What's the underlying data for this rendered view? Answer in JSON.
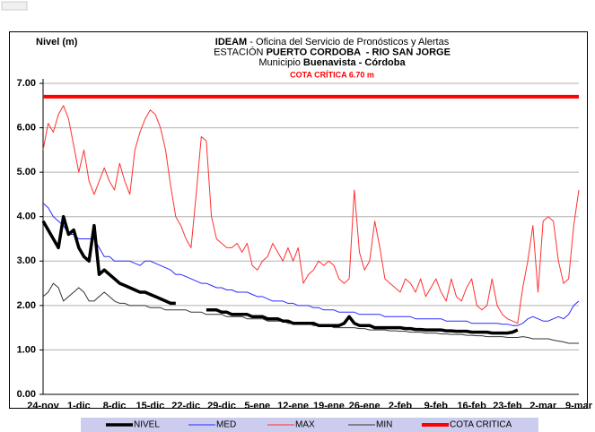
{
  "chart_data": {
    "type": "line",
    "title_lines": [
      [
        {
          "text": "IDEAM",
          "bold": true
        },
        {
          "text": " - Oficina del Servicio de Pronósticos y Alertas",
          "bold": false
        }
      ],
      [
        {
          "text": "ESTACIÓN ",
          "bold": false
        },
        {
          "text": "PUERTO CORDOBA  - RIO SAN JORGE",
          "bold": true
        }
      ],
      [
        {
          "text": "Municipio ",
          "bold": false
        },
        {
          "text": "Buenavista - Córdoba",
          "bold": true
        }
      ]
    ],
    "annotation": "COTA CRÍTICA 6.70 m",
    "ylabel": "Nivel (m)",
    "ylim": [
      0,
      7
    ],
    "yticks": [
      {
        "value": 0,
        "label": "0.00"
      },
      {
        "value": 1,
        "label": "1.00"
      },
      {
        "value": 2,
        "label": "2.00"
      },
      {
        "value": 3,
        "label": "3.00"
      },
      {
        "value": 4,
        "label": "4.00"
      },
      {
        "value": 5,
        "label": "5.00"
      },
      {
        "value": 6,
        "label": "6.00"
      },
      {
        "value": 7,
        "label": "7.00"
      }
    ],
    "grid": true,
    "legend": "bottom",
    "categories": [
      "24-nov",
      null,
      null,
      null,
      null,
      null,
      null,
      "1-dic",
      null,
      null,
      null,
      null,
      null,
      null,
      "8-dic",
      null,
      null,
      null,
      null,
      null,
      null,
      "15-dic",
      null,
      null,
      null,
      null,
      null,
      null,
      "22-dic",
      null,
      null,
      null,
      null,
      null,
      null,
      "29-dic",
      null,
      null,
      null,
      null,
      null,
      null,
      "5-ene",
      null,
      null,
      null,
      null,
      null,
      null,
      "12-ene",
      null,
      null,
      null,
      null,
      null,
      null,
      "19-ene",
      null,
      null,
      null,
      null,
      null,
      null,
      "26-ene",
      null,
      null,
      null,
      null,
      null,
      null,
      "2-feb",
      null,
      null,
      null,
      null,
      null,
      null,
      "9-feb",
      null,
      null,
      null,
      null,
      null,
      null,
      "16-feb",
      null,
      null,
      null,
      null,
      null,
      null,
      "23-feb",
      null,
      null,
      null,
      null,
      null,
      null,
      "2-mar",
      null,
      null,
      null,
      null,
      null,
      null,
      "9-mar"
    ],
    "series": [
      {
        "name": "NIVEL",
        "color": "#000000",
        "width": 3.5,
        "values": [
          3.9,
          3.7,
          3.5,
          3.3,
          4.0,
          3.6,
          3.7,
          3.3,
          3.1,
          3.0,
          3.8,
          2.7,
          2.8,
          2.7,
          2.6,
          2.5,
          2.45,
          2.4,
          2.35,
          2.3,
          2.3,
          2.25,
          2.2,
          2.15,
          2.1,
          2.05,
          2.05,
          null,
          2.0,
          null,
          1.95,
          null,
          1.9,
          1.9,
          1.9,
          1.85,
          1.85,
          1.8,
          1.8,
          1.8,
          1.8,
          1.75,
          1.75,
          1.75,
          1.7,
          1.7,
          1.7,
          1.65,
          1.65,
          1.6,
          1.6,
          1.6,
          1.6,
          1.6,
          1.55,
          1.55,
          1.55,
          1.55,
          1.55,
          1.6,
          1.75,
          1.6,
          1.55,
          1.55,
          1.55,
          1.5,
          1.5,
          1.5,
          1.5,
          1.5,
          1.5,
          1.48,
          1.48,
          1.46,
          1.46,
          1.45,
          1.45,
          1.45,
          1.45,
          1.43,
          1.43,
          1.42,
          1.42,
          1.42,
          1.4,
          1.4,
          1.4,
          1.4,
          1.38,
          1.38,
          1.38,
          1.38,
          1.4,
          1.45,
          null,
          null,
          null,
          null,
          null,
          null,
          null,
          null,
          null,
          null,
          null,
          null
        ]
      },
      {
        "name": "MED",
        "color": "#2a2aff",
        "width": 1,
        "values": [
          4.3,
          4.2,
          4.0,
          3.9,
          3.8,
          3.6,
          3.6,
          3.5,
          3.5,
          3.5,
          3.5,
          3.3,
          3.1,
          3.1,
          3.0,
          3.0,
          3.0,
          3.0,
          2.95,
          2.9,
          3.0,
          3.0,
          2.95,
          2.9,
          2.85,
          2.8,
          2.7,
          2.7,
          2.65,
          2.6,
          2.55,
          2.5,
          2.5,
          2.45,
          2.4,
          2.4,
          2.35,
          2.35,
          2.3,
          2.3,
          2.3,
          2.25,
          2.2,
          2.2,
          2.15,
          2.1,
          2.1,
          2.1,
          2.05,
          2.05,
          2.0,
          2.0,
          2.0,
          1.95,
          1.95,
          1.9,
          1.9,
          1.9,
          1.85,
          1.85,
          1.85,
          1.85,
          1.8,
          1.8,
          1.8,
          1.8,
          1.8,
          1.75,
          1.75,
          1.75,
          1.75,
          1.75,
          1.75,
          1.7,
          1.7,
          1.7,
          1.7,
          1.7,
          1.7,
          1.65,
          1.65,
          1.65,
          1.65,
          1.65,
          1.6,
          1.6,
          1.6,
          1.6,
          1.6,
          1.6,
          1.58,
          1.58,
          1.55,
          1.55,
          1.6,
          1.7,
          1.75,
          1.7,
          1.65,
          1.65,
          1.7,
          1.75,
          1.7,
          1.8,
          2.0,
          2.1
        ]
      },
      {
        "name": "MAX",
        "color": "#ff3030",
        "width": 1,
        "values": [
          5.5,
          6.1,
          5.9,
          6.3,
          6.5,
          6.2,
          5.6,
          5.0,
          5.5,
          4.8,
          4.5,
          4.8,
          5.1,
          4.8,
          4.6,
          5.2,
          4.8,
          4.5,
          5.5,
          5.9,
          6.2,
          6.4,
          6.3,
          6.0,
          5.5,
          4.7,
          4.0,
          3.8,
          3.5,
          3.3,
          4.5,
          5.8,
          5.7,
          4.0,
          3.5,
          3.4,
          3.3,
          3.3,
          3.4,
          3.2,
          3.4,
          2.9,
          2.8,
          3.0,
          3.1,
          3.4,
          3.2,
          3.0,
          3.3,
          3.0,
          3.3,
          2.5,
          2.7,
          2.8,
          3.0,
          2.9,
          3.0,
          2.9,
          2.6,
          2.5,
          2.6,
          4.6,
          3.2,
          2.8,
          3.0,
          3.9,
          3.3,
          2.6,
          2.5,
          2.4,
          2.3,
          2.6,
          2.5,
          2.3,
          2.6,
          2.2,
          2.4,
          2.6,
          2.3,
          2.1,
          2.6,
          2.2,
          2.1,
          2.4,
          2.6,
          2.0,
          1.9,
          2.0,
          2.6,
          2.0,
          1.8,
          1.7,
          1.65,
          1.6,
          2.4,
          3.0,
          3.8,
          2.3,
          3.9,
          4.0,
          3.9,
          3.0,
          2.5,
          2.6,
          3.8,
          4.6
        ]
      },
      {
        "name": "MIN",
        "color": "#333333",
        "width": 1,
        "values": [
          2.2,
          2.3,
          2.5,
          2.4,
          2.1,
          2.2,
          2.3,
          2.4,
          2.3,
          2.1,
          2.1,
          2.2,
          2.3,
          2.2,
          2.1,
          2.05,
          2.05,
          2.0,
          2.0,
          2.0,
          2.0,
          1.95,
          1.95,
          1.95,
          1.9,
          1.9,
          1.9,
          1.9,
          1.9,
          1.85,
          1.85,
          1.85,
          1.8,
          1.8,
          1.8,
          1.8,
          1.75,
          1.75,
          1.75,
          1.75,
          1.7,
          1.7,
          1.7,
          1.7,
          1.65,
          1.65,
          1.65,
          1.65,
          1.6,
          1.6,
          1.6,
          1.6,
          1.6,
          1.55,
          1.55,
          1.55,
          1.55,
          1.5,
          1.5,
          1.5,
          1.5,
          1.5,
          1.48,
          1.48,
          1.45,
          1.45,
          1.45,
          1.45,
          1.43,
          1.43,
          1.42,
          1.42,
          1.4,
          1.4,
          1.4,
          1.38,
          1.38,
          1.38,
          1.36,
          1.36,
          1.35,
          1.35,
          1.35,
          1.33,
          1.33,
          1.32,
          1.32,
          1.3,
          1.3,
          1.3,
          1.3,
          1.28,
          1.28,
          1.28,
          1.3,
          1.28,
          1.25,
          1.25,
          1.25,
          1.25,
          1.22,
          1.2,
          1.18,
          1.15,
          1.15,
          1.15
        ]
      },
      {
        "name": "COTA CRITICA",
        "color": "#ff0000",
        "width": 4,
        "values": [
          6.7,
          6.7,
          6.7,
          6.7,
          6.7,
          6.7,
          6.7,
          6.7,
          6.7,
          6.7,
          6.7,
          6.7,
          6.7,
          6.7,
          6.7,
          6.7,
          6.7,
          6.7,
          6.7,
          6.7,
          6.7,
          6.7,
          6.7,
          6.7,
          6.7,
          6.7,
          6.7,
          6.7,
          6.7,
          6.7,
          6.7,
          6.7,
          6.7,
          6.7,
          6.7,
          6.7,
          6.7,
          6.7,
          6.7,
          6.7,
          6.7,
          6.7,
          6.7,
          6.7,
          6.7,
          6.7,
          6.7,
          6.7,
          6.7,
          6.7,
          6.7,
          6.7,
          6.7,
          6.7,
          6.7,
          6.7,
          6.7,
          6.7,
          6.7,
          6.7,
          6.7,
          6.7,
          6.7,
          6.7,
          6.7,
          6.7,
          6.7,
          6.7,
          6.7,
          6.7,
          6.7,
          6.7,
          6.7,
          6.7,
          6.7,
          6.7,
          6.7,
          6.7,
          6.7,
          6.7,
          6.7,
          6.7,
          6.7,
          6.7,
          6.7,
          6.7,
          6.7,
          6.7,
          6.7,
          6.7,
          6.7,
          6.7,
          6.7,
          6.7,
          6.7,
          6.7,
          6.7,
          6.7,
          6.7,
          6.7,
          6.7,
          6.7,
          6.7,
          6.7,
          6.7,
          6.7
        ]
      }
    ]
  }
}
